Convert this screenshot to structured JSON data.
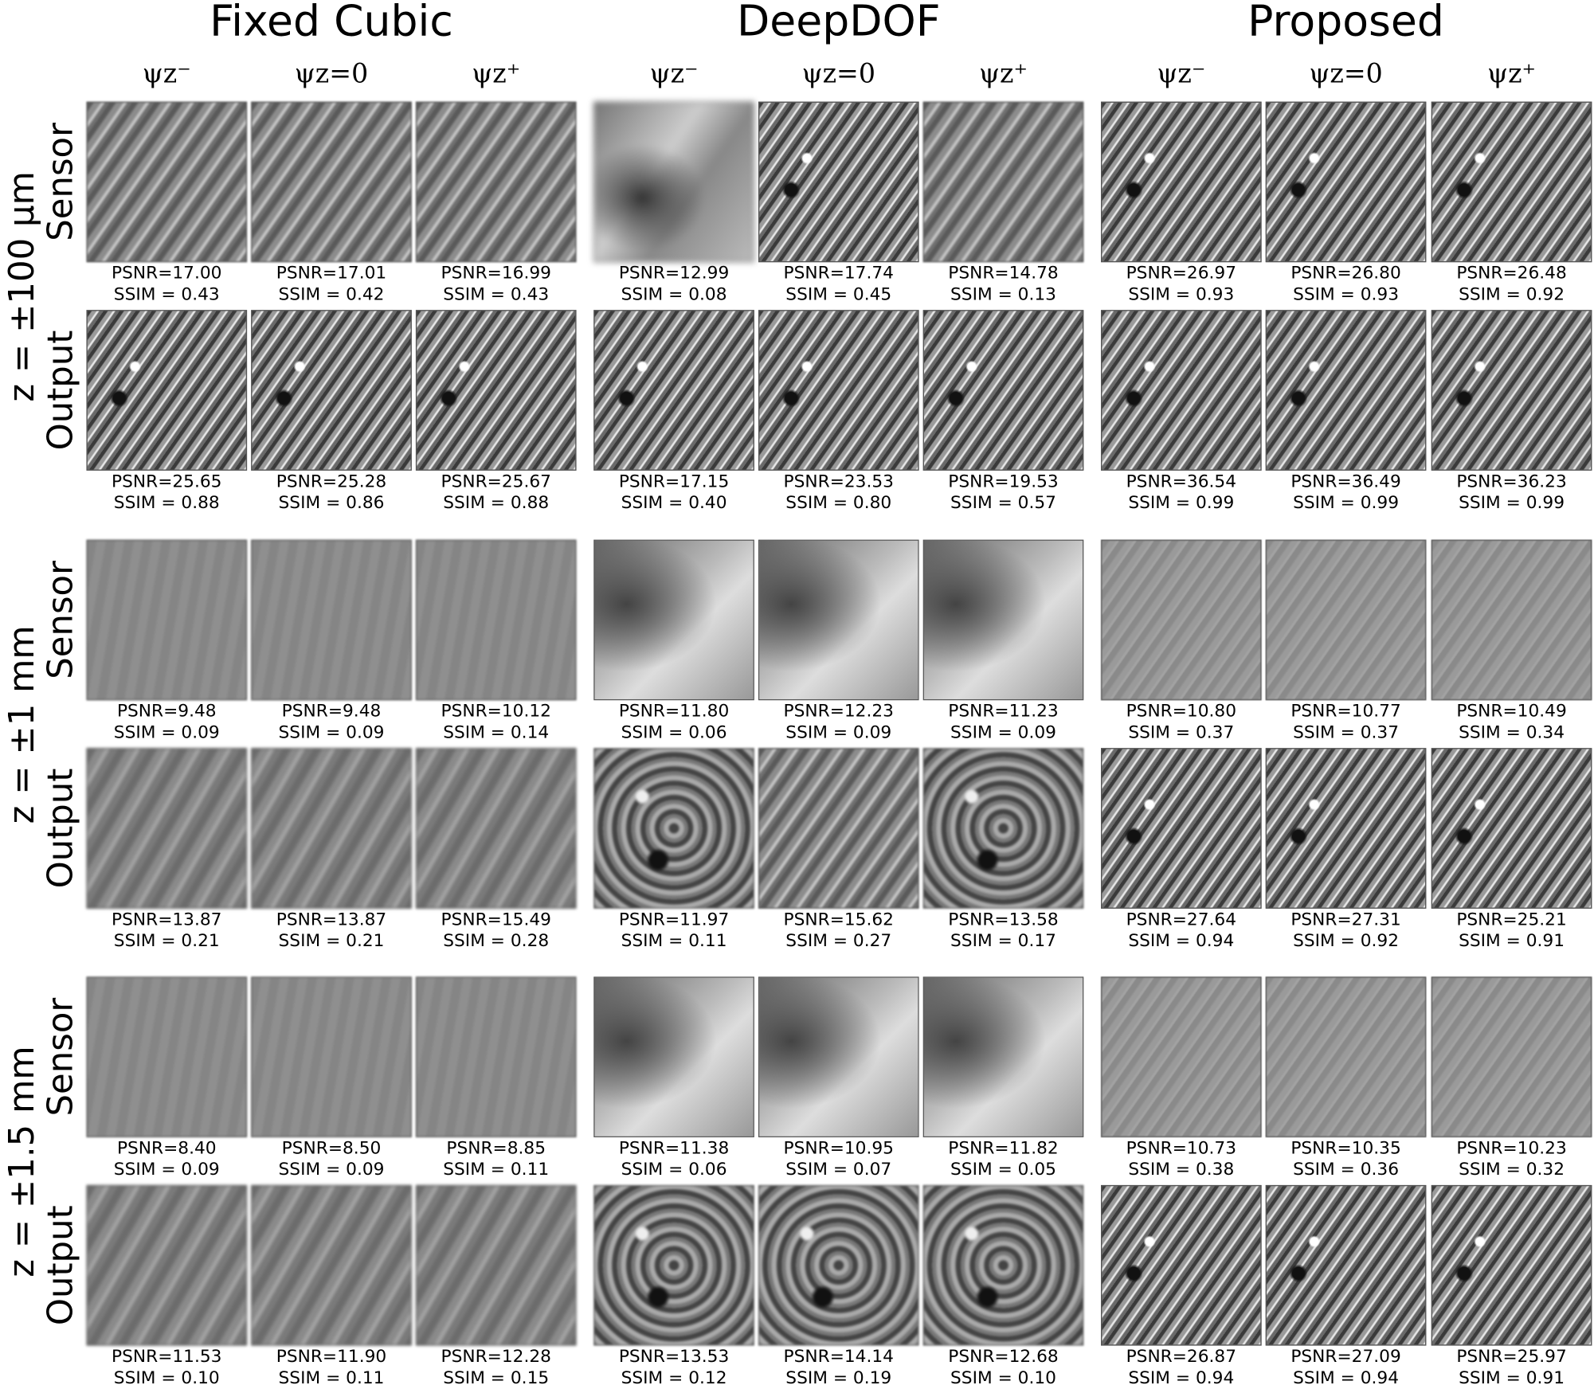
{
  "methods": [
    "Fixed Cubic",
    "DeepDOF",
    "Proposed"
  ],
  "column_labels": [
    "ψz⁻",
    "ψz=0",
    "ψz⁺"
  ],
  "row_groups": [
    {
      "z_label": "z = ±100 μm",
      "rows": [
        {
          "label": "Sensor",
          "cells": [
            {
              "psnr": "PSNR=17.00",
              "ssim": "SSIM = 0.43"
            },
            {
              "psnr": "PSNR=17.01",
              "ssim": "SSIM = 0.42"
            },
            {
              "psnr": "PSNR=16.99",
              "ssim": "SSIM = 0.43"
            },
            {
              "psnr": "PSNR=12.99",
              "ssim": "SSIM = 0.08"
            },
            {
              "psnr": "PSNR=17.74",
              "ssim": "SSIM = 0.45"
            },
            {
              "psnr": "PSNR=14.78",
              "ssim": "SSIM = 0.13"
            },
            {
              "psnr": "PSNR=26.97",
              "ssim": "SSIM = 0.93"
            },
            {
              "psnr": "PSNR=26.80",
              "ssim": "SSIM = 0.93"
            },
            {
              "psnr": "PSNR=26.48",
              "ssim": "SSIM = 0.92"
            }
          ]
        },
        {
          "label": "Output",
          "cells": [
            {
              "psnr": "PSNR=25.65",
              "ssim": "SSIM = 0.88"
            },
            {
              "psnr": "PSNR=25.28",
              "ssim": "SSIM = 0.86"
            },
            {
              "psnr": "PSNR=25.67",
              "ssim": "SSIM = 0.88"
            },
            {
              "psnr": "PSNR=17.15",
              "ssim": "SSIM = 0.40"
            },
            {
              "psnr": "PSNR=23.53",
              "ssim": "SSIM = 0.80"
            },
            {
              "psnr": "PSNR=19.53",
              "ssim": "SSIM = 0.57"
            },
            {
              "psnr": "PSNR=36.54",
              "ssim": "SSIM = 0.99"
            },
            {
              "psnr": "PSNR=36.49",
              "ssim": "SSIM = 0.99"
            },
            {
              "psnr": "PSNR=36.23",
              "ssim": "SSIM = 0.99"
            }
          ]
        }
      ]
    },
    {
      "z_label": "z = ±1 mm",
      "rows": [
        {
          "label": "Sensor",
          "cells": [
            {
              "psnr": "PSNR=9.48",
              "ssim": "SSIM = 0.09"
            },
            {
              "psnr": "PSNR=9.48",
              "ssim": "SSIM = 0.09"
            },
            {
              "psnr": "PSNR=10.12",
              "ssim": "SSIM = 0.14"
            },
            {
              "psnr": "PSNR=11.80",
              "ssim": "SSIM = 0.06"
            },
            {
              "psnr": "PSNR=12.23",
              "ssim": "SSIM = 0.09"
            },
            {
              "psnr": "PSNR=11.23",
              "ssim": "SSIM = 0.09"
            },
            {
              "psnr": "PSNR=10.80",
              "ssim": "SSIM = 0.37"
            },
            {
              "psnr": "PSNR=10.77",
              "ssim": "SSIM = 0.37"
            },
            {
              "psnr": "PSNR=10.49",
              "ssim": "SSIM = 0.34"
            }
          ]
        },
        {
          "label": "Output",
          "cells": [
            {
              "psnr": "PSNR=13.87",
              "ssim": "SSIM = 0.21"
            },
            {
              "psnr": "PSNR=13.87",
              "ssim": "SSIM = 0.21"
            },
            {
              "psnr": "PSNR=15.49",
              "ssim": "SSIM = 0.28"
            },
            {
              "psnr": "PSNR=11.97",
              "ssim": "SSIM = 0.11"
            },
            {
              "psnr": "PSNR=15.62",
              "ssim": "SSIM = 0.27"
            },
            {
              "psnr": "PSNR=13.58",
              "ssim": "SSIM = 0.17"
            },
            {
              "psnr": "PSNR=27.64",
              "ssim": "SSIM = 0.94"
            },
            {
              "psnr": "PSNR=27.31",
              "ssim": "SSIM = 0.92"
            },
            {
              "psnr": "PSNR=25.21",
              "ssim": "SSIM = 0.91"
            }
          ]
        }
      ]
    },
    {
      "z_label": "z = ±1.5 mm",
      "rows": [
        {
          "label": "Sensor",
          "cells": [
            {
              "psnr": "PSNR=8.40",
              "ssim": "SSIM = 0.09"
            },
            {
              "psnr": "PSNR=8.50",
              "ssim": "SSIM = 0.09"
            },
            {
              "psnr": "PSNR=8.85",
              "ssim": "SSIM = 0.11"
            },
            {
              "psnr": "PSNR=11.38",
              "ssim": "SSIM = 0.06"
            },
            {
              "psnr": "PSNR=10.95",
              "ssim": "SSIM = 0.07"
            },
            {
              "psnr": "PSNR=11.82",
              "ssim": "SSIM = 0.05"
            },
            {
              "psnr": "PSNR=10.73",
              "ssim": "SSIM = 0.38"
            },
            {
              "psnr": "PSNR=10.35",
              "ssim": "SSIM = 0.36"
            },
            {
              "psnr": "PSNR=10.23",
              "ssim": "SSIM = 0.32"
            }
          ]
        },
        {
          "label": "Output",
          "cells": [
            {
              "psnr": "PSNR=11.53",
              "ssim": "SSIM = 0.10"
            },
            {
              "psnr": "PSNR=11.90",
              "ssim": "SSIM = 0.11"
            },
            {
              "psnr": "PSNR=12.28",
              "ssim": "SSIM = 0.15"
            },
            {
              "psnr": "PSNR=13.53",
              "ssim": "SSIM = 0.12"
            },
            {
              "psnr": "PSNR=14.14",
              "ssim": "SSIM = 0.19"
            },
            {
              "psnr": "PSNR=12.68",
              "ssim": "SSIM = 0.10"
            },
            {
              "psnr": "PSNR=26.87",
              "ssim": "SSIM = 0.94"
            },
            {
              "psnr": "PSNR=27.09",
              "ssim": "SSIM = 0.94"
            },
            {
              "psnr": "PSNR=25.97",
              "ssim": "SSIM = 0.91"
            }
          ]
        }
      ]
    }
  ]
}
